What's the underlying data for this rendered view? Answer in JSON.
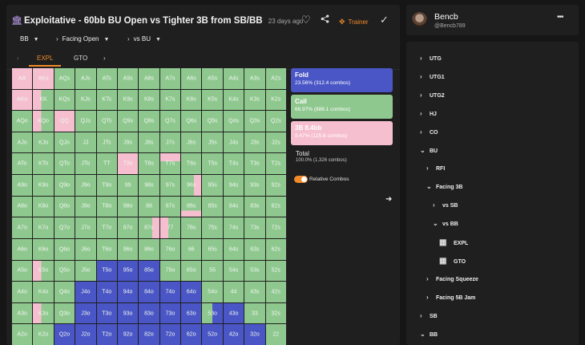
{
  "header": {
    "title": "Exploitative - 60bb BU Open vs Tighter 3B from SB/BB",
    "time_ago": "23 days ago",
    "trainer_label": "Trainer",
    "icons": [
      "bank-icon",
      "heart-icon",
      "share-icon",
      "trainer-icon",
      "check-icon"
    ]
  },
  "filters": {
    "position": "BB",
    "line": "Facing Open",
    "vs": "vs BU"
  },
  "tabs": [
    "EXPL",
    "GTO"
  ],
  "legend": {
    "fold_name": "Fold",
    "fold_value": "23.56% (312.4 combos)",
    "call_name": "Call",
    "call_value": "66.97% (888.1 combos)",
    "threebet_name": "3B 8.4bb",
    "threebet_value": "9.47% (125.6 combos)",
    "total_name": "Total",
    "total_value": "100.0% (1,326 combos)",
    "toggle_label": "Relative Combos",
    "colors": {
      "fold": "#4a56c6",
      "call": "#8fc88f",
      "threebet": "#f6bfcf"
    }
  },
  "grid": {
    "rows": [
      [
        "AA",
        "AKs",
        "AQs",
        "AJs",
        "ATs",
        "A9s",
        "A8s",
        "A7s",
        "A6s",
        "A5s",
        "A4s",
        "A3s",
        "A2s"
      ],
      [
        "AKo",
        "KK",
        "KQs",
        "KJs",
        "KTs",
        "K9s",
        "K8s",
        "K7s",
        "K6s",
        "K5s",
        "K4s",
        "K3s",
        "K2s"
      ],
      [
        "AQo",
        "KQo",
        "QQ",
        "QJs",
        "QTs",
        "Q9s",
        "Q8s",
        "Q7s",
        "Q6s",
        "Q5s",
        "Q4s",
        "Q3s",
        "Q2s"
      ],
      [
        "AJo",
        "KJo",
        "QJo",
        "JJ",
        "JTs",
        "J9s",
        "J8s",
        "J7s",
        "J6s",
        "J5s",
        "J4s",
        "J3s",
        "J2s"
      ],
      [
        "ATo",
        "KTo",
        "QTo",
        "JTo",
        "TT",
        "T9s",
        "T8s",
        "T7s",
        "T6s",
        "T5s",
        "T4s",
        "T3s",
        "T2s"
      ],
      [
        "A9o",
        "K9o",
        "Q9o",
        "J9o",
        "T9o",
        "99",
        "98s",
        "97s",
        "96s",
        "95s",
        "94s",
        "93s",
        "92s"
      ],
      [
        "A8o",
        "K8o",
        "Q8o",
        "J8o",
        "T8o",
        "98o",
        "88",
        "87s",
        "86s",
        "85s",
        "84s",
        "83s",
        "82s"
      ],
      [
        "A7o",
        "K7o",
        "Q7o",
        "J7o",
        "T7o",
        "97o",
        "87o",
        "77",
        "76s",
        "75s",
        "74s",
        "73s",
        "72s"
      ],
      [
        "A6o",
        "K6o",
        "Q6o",
        "J6o",
        "T6o",
        "96o",
        "86o",
        "76o",
        "66",
        "65s",
        "64s",
        "63s",
        "62s"
      ],
      [
        "A5o",
        "K5o",
        "Q5o",
        "J5o",
        "T5o",
        "95o",
        "85o",
        "75o",
        "65o",
        "55",
        "54s",
        "53s",
        "52s"
      ],
      [
        "A4o",
        "K4o",
        "Q4o",
        "J4o",
        "T4o",
        "94o",
        "84o",
        "74o",
        "64o",
        "54o",
        "44",
        "43s",
        "42s"
      ],
      [
        "A3o",
        "K3o",
        "Q3o",
        "J3o",
        "T3o",
        "93o",
        "83o",
        "73o",
        "63o",
        "53o",
        "43o",
        "33",
        "32s"
      ],
      [
        "A2o",
        "K2o",
        "Q2o",
        "J2o",
        "T2o",
        "92o",
        "82o",
        "72o",
        "62o",
        "52o",
        "42o",
        "32o",
        "22"
      ]
    ],
    "actions": [
      [
        "f",
        "f",
        "c",
        "c",
        "c",
        "c",
        "c",
        "c",
        "c",
        "c",
        "c",
        "c",
        "c"
      ],
      [
        "f",
        "pf",
        "c",
        "c",
        "c",
        "c",
        "c",
        "c",
        "c",
        "c",
        "c",
        "c",
        "c"
      ],
      [
        "c",
        "pf",
        "f",
        "c",
        "c",
        "c",
        "c",
        "c",
        "c",
        "c",
        "c",
        "c",
        "c"
      ],
      [
        "c",
        "c",
        "c",
        "c",
        "c",
        "c",
        "c",
        "c",
        "c",
        "c",
        "c",
        "c",
        "c"
      ],
      [
        "c",
        "c",
        "c",
        "c",
        "c",
        "f",
        "c",
        "pt",
        "c",
        "c",
        "c",
        "c",
        "c"
      ],
      [
        "c",
        "c",
        "c",
        "c",
        "c",
        "c",
        "c",
        "c",
        "pr",
        "c",
        "c",
        "c",
        "c"
      ],
      [
        "c",
        "c",
        "c",
        "c",
        "c",
        "c",
        "c",
        "c",
        "pb",
        "c",
        "c",
        "c",
        "c"
      ],
      [
        "c",
        "c",
        "c",
        "c",
        "c",
        "c",
        "pr",
        "pf",
        "c",
        "c",
        "c",
        "c",
        "c"
      ],
      [
        "c",
        "c",
        "c",
        "c",
        "c",
        "c",
        "c",
        "c",
        "c",
        "c",
        "c",
        "c",
        "c"
      ],
      [
        "c",
        "pf",
        "c",
        "c",
        "d",
        "d",
        "d",
        "c",
        "c",
        "c",
        "c",
        "c",
        "c"
      ],
      [
        "c",
        "c",
        "c",
        "d",
        "d",
        "d",
        "d",
        "d",
        "d",
        "c",
        "c",
        "c",
        "c"
      ],
      [
        "c",
        "pf",
        "c",
        "d",
        "d",
        "d",
        "d",
        "d",
        "d",
        "dl",
        "d",
        "c",
        "c"
      ],
      [
        "c",
        "c",
        "d",
        "d",
        "d",
        "d",
        "d",
        "d",
        "d",
        "d",
        "d",
        "d",
        "c"
      ]
    ]
  },
  "user": {
    "name": "Bencb",
    "handle": "@Bencb789"
  },
  "tree": [
    {
      "label": "UTG",
      "arrow": "›",
      "indent": 0,
      "kind": "branch"
    },
    {
      "label": "UTG1",
      "arrow": "›",
      "indent": 0,
      "kind": "branch"
    },
    {
      "label": "UTG2",
      "arrow": "›",
      "indent": 0,
      "kind": "branch"
    },
    {
      "label": "HJ",
      "arrow": "›",
      "indent": 0,
      "kind": "branch"
    },
    {
      "label": "CO",
      "arrow": "›",
      "indent": 0,
      "kind": "branch"
    },
    {
      "label": "BU",
      "arrow": "⌄",
      "indent": 0,
      "kind": "branch"
    },
    {
      "label": "RFI",
      "arrow": "›",
      "indent": 1,
      "kind": "branch"
    },
    {
      "label": "Facing 3B",
      "arrow": "⌄",
      "indent": 1,
      "kind": "branch"
    },
    {
      "label": "vs SB",
      "arrow": "›",
      "indent": 2,
      "kind": "branch"
    },
    {
      "label": "vs BB",
      "arrow": "⌄",
      "indent": 2,
      "kind": "branch"
    },
    {
      "label": "EXPL",
      "arrow": "",
      "indent": 3,
      "kind": "leaf"
    },
    {
      "label": "GTO",
      "arrow": "",
      "indent": 3,
      "kind": "leaf"
    },
    {
      "label": "Facing Squeeze",
      "arrow": "›",
      "indent": 1,
      "kind": "branch"
    },
    {
      "label": "Facing 5B Jam",
      "arrow": "›",
      "indent": 1,
      "kind": "branch"
    },
    {
      "label": "SB",
      "arrow": "›",
      "indent": 0,
      "kind": "branch"
    },
    {
      "label": "BB",
      "arrow": "⌄",
      "indent": 0,
      "kind": "branch"
    }
  ]
}
